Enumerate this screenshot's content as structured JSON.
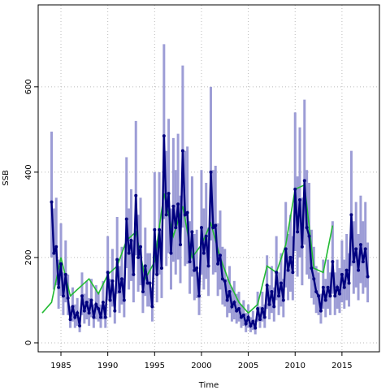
{
  "chart_data": {
    "type": "line",
    "xlabel": "Time",
    "ylabel": "SSB",
    "xlim": [
      1982.57,
      2019.0
    ],
    "ylim": [
      -21,
      792
    ],
    "xticks": [
      1985,
      1990,
      1995,
      2000,
      2005,
      2010,
      2015
    ],
    "yticks": [
      0,
      200,
      400,
      600
    ],
    "grid": true,
    "x": [
      1984,
      1984.25,
      1984.5,
      1984.75,
      1985,
      1985.25,
      1985.5,
      1985.75,
      1986,
      1986.25,
      1986.5,
      1986.75,
      1987,
      1987.25,
      1987.5,
      1987.75,
      1988,
      1988.25,
      1988.5,
      1988.75,
      1989,
      1989.25,
      1989.5,
      1989.75,
      1990,
      1990.25,
      1990.5,
      1990.75,
      1991,
      1991.25,
      1991.5,
      1991.75,
      1992,
      1992.25,
      1992.5,
      1992.75,
      1993,
      1993.25,
      1993.5,
      1993.75,
      1994,
      1994.25,
      1994.5,
      1994.75,
      1995,
      1995.25,
      1995.5,
      1995.75,
      1996,
      1996.25,
      1996.5,
      1996.75,
      1997,
      1997.25,
      1997.5,
      1997.75,
      1998,
      1998.25,
      1998.5,
      1998.75,
      1999,
      1999.25,
      1999.5,
      1999.75,
      2000,
      2000.25,
      2000.5,
      2000.75,
      2001,
      2001.25,
      2001.5,
      2001.75,
      2002,
      2002.25,
      2002.5,
      2002.75,
      2003,
      2003.25,
      2003.5,
      2003.75,
      2004,
      2004.25,
      2004.5,
      2004.75,
      2005,
      2005.25,
      2005.5,
      2005.75,
      2006,
      2006.25,
      2006.5,
      2006.75,
      2007,
      2007.25,
      2007.5,
      2007.75,
      2008,
      2008.25,
      2008.5,
      2008.75,
      2009,
      2009.25,
      2009.5,
      2009.75,
      2010,
      2010.25,
      2010.5,
      2010.75,
      2011,
      2011.25,
      2011.5,
      2011.75,
      2012,
      2012.25,
      2012.5,
      2012.75,
      2013,
      2013.25,
      2013.5,
      2013.75,
      2014,
      2014.25,
      2014.5,
      2014.75,
      2015,
      2015.25,
      2015.5,
      2015.75,
      2016,
      2016.25,
      2016.5,
      2016.75,
      2017,
      2017.25,
      2017.5,
      2017.75
    ],
    "series": [
      {
        "color": "#00007f",
        "values": [
          330,
          210,
          225,
          130,
          185,
          110,
          160,
          105,
          55,
          85,
          60,
          70,
          40,
          110,
          75,
          95,
          70,
          100,
          60,
          90,
          80,
          60,
          95,
          60,
          165,
          100,
          145,
          75,
          195,
          120,
          150,
          100,
          290,
          210,
          240,
          160,
          345,
          200,
          225,
          120,
          180,
          140,
          140,
          85,
          265,
          160,
          265,
          175,
          485,
          300,
          350,
          210,
          320,
          270,
          325,
          230,
          450,
          300,
          305,
          190,
          260,
          170,
          175,
          110,
          270,
          210,
          250,
          180,
          400,
          270,
          275,
          185,
          205,
          150,
          145,
          100,
          120,
          85,
          95,
          75,
          80,
          60,
          65,
          45,
          60,
          40,
          50,
          35,
          80,
          55,
          80,
          60,
          135,
          90,
          120,
          85,
          165,
          110,
          140,
          100,
          220,
          170,
          200,
          165,
          360,
          260,
          335,
          225,
          380,
          270,
          250,
          175,
          150,
          120,
          110,
          75,
          130,
          100,
          130,
          110,
          190,
          110,
          130,
          115,
          160,
          130,
          170,
          140,
          300,
          190,
          220,
          170,
          230,
          190,
          220,
          155
        ]
      }
    ],
    "band": {
      "color": "#9d9dd6",
      "lower": [
        200,
        125,
        135,
        80,
        110,
        65,
        95,
        65,
        35,
        50,
        35,
        40,
        25,
        65,
        45,
        55,
        40,
        60,
        35,
        55,
        50,
        35,
        55,
        35,
        100,
        60,
        85,
        45,
        115,
        70,
        90,
        60,
        175,
        125,
        145,
        95,
        205,
        120,
        135,
        70,
        110,
        85,
        85,
        50,
        160,
        95,
        160,
        105,
        290,
        180,
        210,
        125,
        190,
        160,
        195,
        140,
        270,
        180,
        185,
        115,
        155,
        100,
        105,
        65,
        160,
        125,
        150,
        110,
        240,
        160,
        165,
        110,
        125,
        90,
        85,
        60,
        70,
        50,
        55,
        45,
        50,
        35,
        40,
        25,
        35,
        25,
        30,
        20,
        50,
        35,
        50,
        35,
        80,
        55,
        70,
        50,
        100,
        65,
        85,
        60,
        130,
        100,
        120,
        100,
        215,
        155,
        200,
        135,
        230,
        160,
        150,
        105,
        90,
        70,
        65,
        45,
        80,
        60,
        80,
        65,
        115,
        65,
        80,
        70,
        95,
        80,
        100,
        85,
        180,
        115,
        130,
        100,
        140,
        115,
        130,
        95
      ],
      "upper": [
        495,
        315,
        340,
        195,
        280,
        165,
        240,
        160,
        85,
        130,
        90,
        105,
        60,
        165,
        115,
        145,
        105,
        150,
        90,
        135,
        120,
        90,
        145,
        90,
        250,
        150,
        220,
        115,
        295,
        180,
        225,
        150,
        435,
        315,
        360,
        240,
        520,
        300,
        340,
        180,
        270,
        210,
        210,
        130,
        400,
        240,
        400,
        265,
        700,
        450,
        525,
        315,
        480,
        405,
        490,
        345,
        650,
        450,
        460,
        285,
        390,
        255,
        265,
        165,
        405,
        315,
        375,
        270,
        600,
        405,
        415,
        280,
        310,
        225,
        220,
        150,
        180,
        130,
        145,
        115,
        120,
        90,
        100,
        70,
        90,
        60,
        75,
        55,
        120,
        85,
        120,
        90,
        205,
        135,
        180,
        130,
        250,
        165,
        210,
        150,
        330,
        255,
        300,
        250,
        540,
        390,
        505,
        340,
        570,
        405,
        375,
        265,
        225,
        180,
        165,
        115,
        195,
        150,
        195,
        165,
        285,
        165,
        195,
        175,
        240,
        195,
        255,
        210,
        450,
        285,
        330,
        255,
        345,
        285,
        330,
        235
      ]
    },
    "annual": {
      "color": "#22bb33",
      "x": [
        1983,
        1984,
        1985,
        1986,
        1987,
        1988,
        1989,
        1990,
        1991,
        1992,
        1993,
        1994,
        1995,
        1996,
        1997,
        1998,
        1999,
        2000,
        2001,
        2002,
        2003,
        2004,
        2005,
        2006,
        2007,
        2008,
        2009,
        2010,
        2011,
        2012,
        2013,
        2014
      ],
      "values": [
        70,
        95,
        200,
        110,
        130,
        150,
        115,
        160,
        180,
        240,
        260,
        150,
        190,
        350,
        250,
        320,
        200,
        230,
        280,
        200,
        140,
        95,
        70,
        90,
        180,
        165,
        230,
        360,
        370,
        175,
        165,
        275
      ]
    }
  }
}
